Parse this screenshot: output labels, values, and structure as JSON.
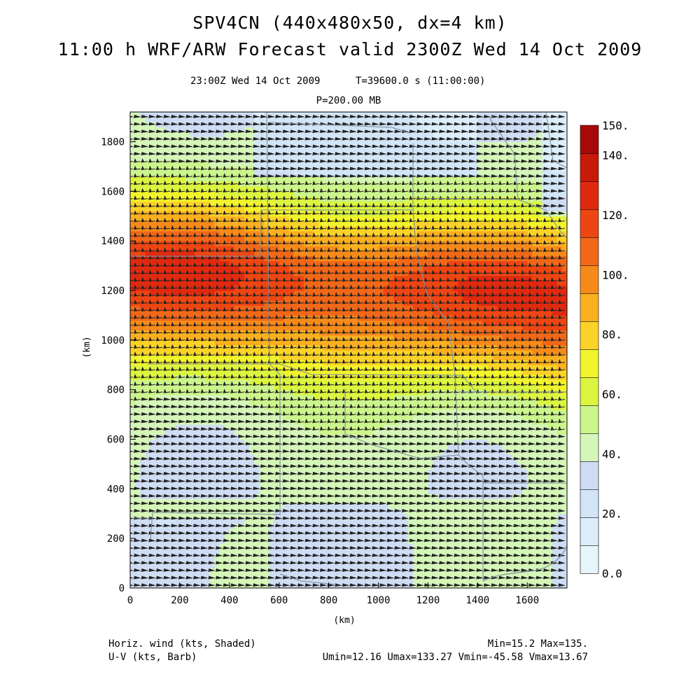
{
  "header": {
    "title_line1": "SPV4CN (440x480x50, dx=4 km)",
    "title_line2": "11:00 h WRF/ARW Forecast valid 2300Z Wed 14 Oct 2009",
    "valid_time": "23:00Z Wed 14 Oct 2009",
    "time_seconds": "T=39600.0 s (11:00:00)",
    "level": "P=200.00 MB"
  },
  "footer": {
    "field1": "Horiz. wind (kts, Shaded)",
    "field2": "U-V (kts, Barb)",
    "minmax": "Min=15.2 Max=135.",
    "uv_range": "Umin=12.16 Umax=133.27 Vmin=-45.58 Vmax=13.67"
  },
  "chart_data": {
    "type": "heatmap",
    "title": "P=200.00 MB",
    "xlabel": "(km)",
    "ylabel": "(km)",
    "xlim": [
      0,
      1760
    ],
    "ylim": [
      0,
      1920
    ],
    "x_ticks": [
      0,
      200,
      400,
      600,
      800,
      1000,
      1200,
      1400,
      1600
    ],
    "y_ticks": [
      0,
      200,
      400,
      600,
      800,
      1000,
      1200,
      1400,
      1600,
      1800
    ],
    "field": "Horiz. wind (kts)",
    "overlay": "wind barbs (U-V, kts)",
    "min": 15.2,
    "max": 135,
    "colorbar": {
      "levels": [
        0,
        10,
        20,
        30,
        40,
        50,
        60,
        70,
        80,
        90,
        100,
        110,
        120,
        130,
        140,
        150
      ],
      "tick_labels": [
        "0.0",
        "20.",
        "40.",
        "60.",
        "80.",
        "100.",
        "120.",
        "140.",
        "150."
      ],
      "colors": [
        "#e6f5fb",
        "#dceefb",
        "#d2e5f7",
        "#cfdcf4",
        "#d4f6b8",
        "#ccf58c",
        "#dcf540",
        "#f2f42c",
        "#fbd228",
        "#fbb020",
        "#f68a1a",
        "#f16818",
        "#ee4612",
        "#e02a10",
        "#c81a0a",
        "#a80808"
      ]
    },
    "jet": {
      "description": "east-west jet max",
      "core_speed_range_kts": [
        120,
        135
      ],
      "core_y_km": [
        1100,
        1400
      ]
    },
    "grid": false
  }
}
